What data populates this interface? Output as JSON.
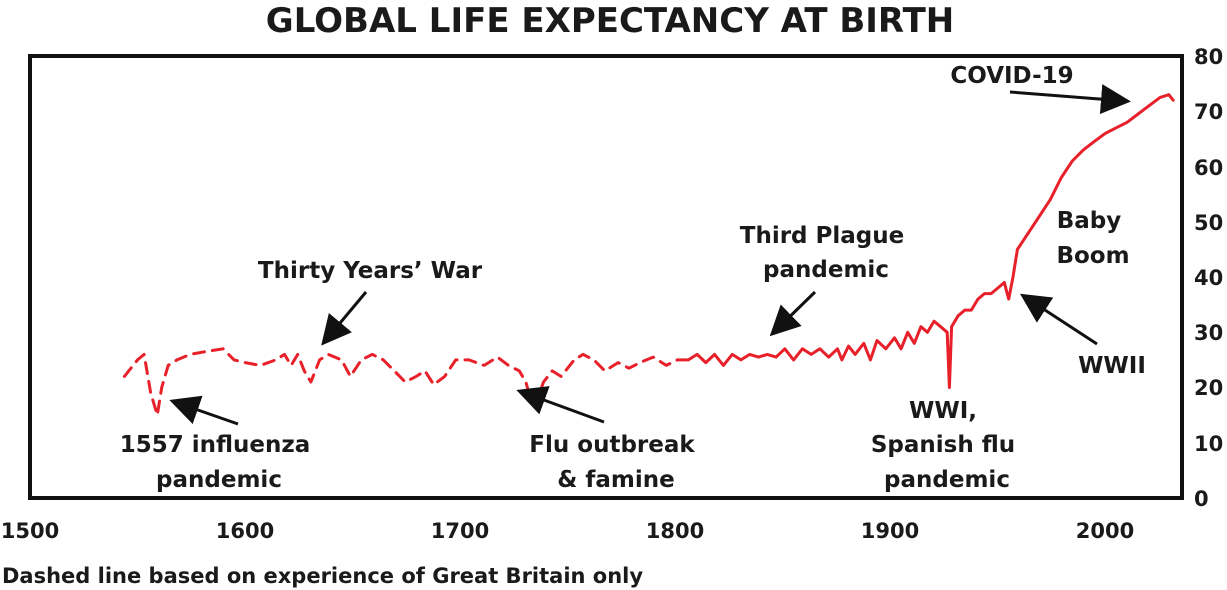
{
  "chart_data": {
    "type": "line",
    "title": "GLOBAL LIFE EXPECTANCY AT BIRTH",
    "xlabel": "",
    "ylabel": "",
    "xlim": [
      1500,
      2025
    ],
    "ylim": [
      0,
      80
    ],
    "x_ticks": [
      "1500",
      "1600",
      "1700",
      "1800",
      "1900",
      "2000"
    ],
    "y_ticks": [
      "0",
      "10",
      "20",
      "30",
      "40",
      "50",
      "60",
      "70",
      "80"
    ],
    "grid": false,
    "colors": {
      "line": "#e8202a",
      "frame": "#111111",
      "arrow": "#111111"
    },
    "series": [
      {
        "style": "dashed",
        "points": [
          [
            1543,
            22
          ],
          [
            1549,
            25
          ],
          [
            1552,
            26
          ],
          [
            1555,
            19
          ],
          [
            1558,
            15
          ],
          [
            1560,
            20
          ],
          [
            1563,
            24
          ],
          [
            1567,
            25
          ],
          [
            1573,
            26
          ],
          [
            1580,
            26.5
          ],
          [
            1588,
            27
          ],
          [
            1593,
            25
          ],
          [
            1598,
            24.5
          ],
          [
            1605,
            24
          ],
          [
            1612,
            25
          ],
          [
            1616,
            26
          ],
          [
            1619,
            24
          ],
          [
            1622,
            26
          ],
          [
            1625,
            23
          ],
          [
            1628,
            21
          ],
          [
            1632,
            25
          ],
          [
            1636,
            26
          ],
          [
            1642,
            25
          ],
          [
            1646,
            22
          ],
          [
            1651,
            25
          ],
          [
            1656,
            26
          ],
          [
            1661,
            25
          ],
          [
            1666,
            23
          ],
          [
            1671,
            21
          ],
          [
            1676,
            22
          ],
          [
            1680,
            23
          ],
          [
            1684,
            20.5
          ],
          [
            1689,
            22
          ],
          [
            1694,
            25
          ],
          [
            1700,
            25
          ],
          [
            1707,
            24
          ],
          [
            1713,
            25.5
          ],
          [
            1718,
            24
          ],
          [
            1723,
            23
          ],
          [
            1726,
            21
          ],
          [
            1728,
            18
          ],
          [
            1731,
            17.5
          ],
          [
            1734,
            21
          ],
          [
            1738,
            23
          ],
          [
            1742,
            22
          ],
          [
            1748,
            25
          ],
          [
            1752,
            26
          ],
          [
            1757,
            25
          ],
          [
            1762,
            23
          ],
          [
            1768,
            24.5
          ],
          [
            1773,
            23.5
          ],
          [
            1778,
            24.5
          ],
          [
            1784,
            25.5
          ],
          [
            1790,
            24
          ],
          [
            1795,
            25
          ],
          [
            1800,
            25
          ]
        ]
      },
      {
        "style": "solid",
        "points": [
          [
            1800,
            25
          ],
          [
            1804,
            26
          ],
          [
            1808,
            24.5
          ],
          [
            1812,
            26
          ],
          [
            1816,
            24
          ],
          [
            1820,
            26
          ],
          [
            1824,
            25
          ],
          [
            1828,
            26
          ],
          [
            1832,
            25.5
          ],
          [
            1836,
            26
          ],
          [
            1840,
            25.5
          ],
          [
            1844,
            27
          ],
          [
            1848,
            25
          ],
          [
            1852,
            27
          ],
          [
            1856,
            26
          ],
          [
            1860,
            27
          ],
          [
            1864,
            25.5
          ],
          [
            1868,
            27
          ],
          [
            1870,
            25
          ],
          [
            1873,
            27.5
          ],
          [
            1876,
            26
          ],
          [
            1880,
            28
          ],
          [
            1883,
            25
          ],
          [
            1886,
            28.5
          ],
          [
            1890,
            27
          ],
          [
            1894,
            29
          ],
          [
            1897,
            27
          ],
          [
            1900,
            30
          ],
          [
            1903,
            28
          ],
          [
            1906,
            31
          ],
          [
            1909,
            30
          ],
          [
            1912,
            32
          ],
          [
            1915,
            31
          ],
          [
            1918,
            30
          ],
          [
            1919,
            20
          ],
          [
            1920,
            31
          ],
          [
            1923,
            33
          ],
          [
            1926,
            34
          ],
          [
            1929,
            34
          ],
          [
            1932,
            36
          ],
          [
            1935,
            37
          ],
          [
            1938,
            37
          ],
          [
            1941,
            38
          ],
          [
            1944,
            39
          ],
          [
            1946,
            36
          ],
          [
            1948,
            40
          ],
          [
            1950,
            45
          ],
          [
            1955,
            48
          ],
          [
            1960,
            51
          ],
          [
            1965,
            54
          ],
          [
            1970,
            58
          ],
          [
            1975,
            61
          ],
          [
            1980,
            63
          ],
          [
            1985,
            64.5
          ],
          [
            1990,
            66
          ],
          [
            1995,
            67
          ],
          [
            2000,
            68
          ],
          [
            2005,
            69.5
          ],
          [
            2010,
            71
          ],
          [
            2015,
            72.5
          ],
          [
            2019,
            73
          ],
          [
            2021,
            72
          ]
        ]
      }
    ],
    "annotations": [
      {
        "lines": [
          "COVID-19"
        ],
        "x": 2020,
        "y": 72
      },
      {
        "lines": [
          "Baby",
          "Boom"
        ],
        "x": 1950,
        "y": 45
      },
      {
        "lines": [
          "Third Plague",
          "pandemic"
        ],
        "x": 1845,
        "y": 28
      },
      {
        "lines": [
          "Thirty Years’ War"
        ],
        "x": 1636,
        "y": 28
      },
      {
        "lines": [
          "WWII"
        ],
        "x": 1945,
        "y": 37
      },
      {
        "lines": [
          "WWI,",
          "Spanish flu",
          "pandemic"
        ],
        "x": 1919,
        "y": 20
      },
      {
        "lines": [
          "1557 influenza",
          "pandemic"
        ],
        "x": 1557,
        "y": 18
      },
      {
        "lines": [
          "Flu outbreak",
          "& famine"
        ],
        "x": 1732,
        "y": 19
      }
    ],
    "note": "Dashed line based on experience of Great Britain only"
  }
}
